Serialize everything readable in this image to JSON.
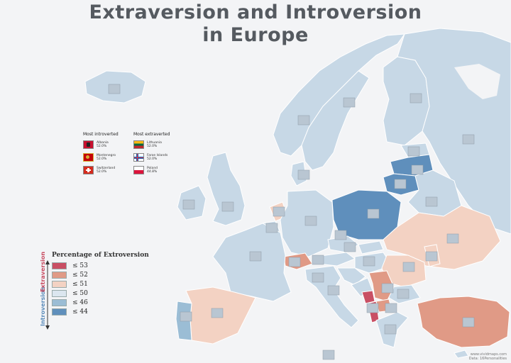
{
  "title_line1": "Extraversion and Introversion",
  "title_line2": "in Europe",
  "callouts": {
    "introverted": {
      "title": "Most introverted",
      "items": [
        {
          "name": "Albania",
          "value": "52.0%"
        },
        {
          "name": "Montenegro",
          "value": "52.0%"
        },
        {
          "name": "Switzerland",
          "value": "52.0%"
        }
      ]
    },
    "extraverted": {
      "title": "Most extraverted",
      "items": [
        {
          "name": "Lithuania",
          "value": "52.0%"
        },
        {
          "name": "Faroe Islands",
          "value": "52.0%"
        },
        {
          "name": "Poland",
          "value": "44.8%"
        }
      ]
    }
  },
  "legend": {
    "title": "Percentage of Extroversion",
    "axis_low": "Introversion",
    "axis_high": "Extraversion",
    "items": [
      {
        "label": "≤ 53",
        "color": "#c94f64"
      },
      {
        "label": "≤ 52",
        "color": "#e09a86"
      },
      {
        "label": "≤ 51",
        "color": "#f3d2c3"
      },
      {
        "label": "≤ 50",
        "color": "#dbe6ef"
      },
      {
        "label": "≤ 46",
        "color": "#9bbdd5"
      },
      {
        "label": "≤ 44",
        "color": "#5f8fbc"
      }
    ]
  },
  "colors": {
    "sea": "#f3f4f6",
    "land_default": "#c7d8e6",
    "border": "#ffffff",
    "title": "#555a60",
    "extraversion_text": "#c94f64",
    "introversion_text": "#5f8fbc"
  },
  "credit_line1": "www.vividmaps.com",
  "credit_line2": "Data: 16Personalities"
}
